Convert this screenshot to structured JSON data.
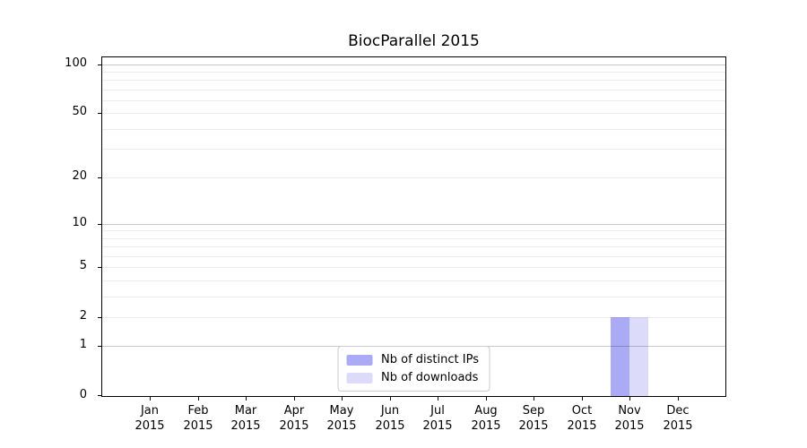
{
  "chart_data": {
    "type": "bar",
    "title": "BiocParallel 2015",
    "categories": [
      "Jan 2015",
      "Feb 2015",
      "Mar 2015",
      "Apr 2015",
      "May 2015",
      "Jun 2015",
      "Jul 2015",
      "Aug 2015",
      "Sep 2015",
      "Oct 2015",
      "Nov 2015",
      "Dec 2015"
    ],
    "series": [
      {
        "name": "Nb of distinct IPs",
        "color": "#aaaaf5",
        "values": [
          0,
          0,
          0,
          0,
          0,
          0,
          0,
          0,
          0,
          0,
          2,
          0
        ]
      },
      {
        "name": "Nb of downloads",
        "color": "#dcdcfa",
        "values": [
          0,
          0,
          0,
          0,
          0,
          0,
          0,
          0,
          0,
          0,
          2,
          0
        ]
      }
    ],
    "xlabel": "",
    "ylabel": "",
    "yscale": "log1p",
    "ylim": [
      0,
      110
    ],
    "yticks": [
      0,
      1,
      2,
      5,
      10,
      20,
      50,
      100
    ],
    "gridlines": {
      "major": [
        1,
        10,
        100
      ],
      "minor": [
        2,
        3,
        4,
        5,
        6,
        7,
        8,
        9,
        20,
        30,
        40,
        50,
        60,
        70,
        80,
        90
      ],
      "major_color": "#c9c9c9",
      "minor_color": "#ececec"
    },
    "legend": {
      "position": "lower center"
    },
    "axis_color": "#000000",
    "background": "#ffffff"
  }
}
